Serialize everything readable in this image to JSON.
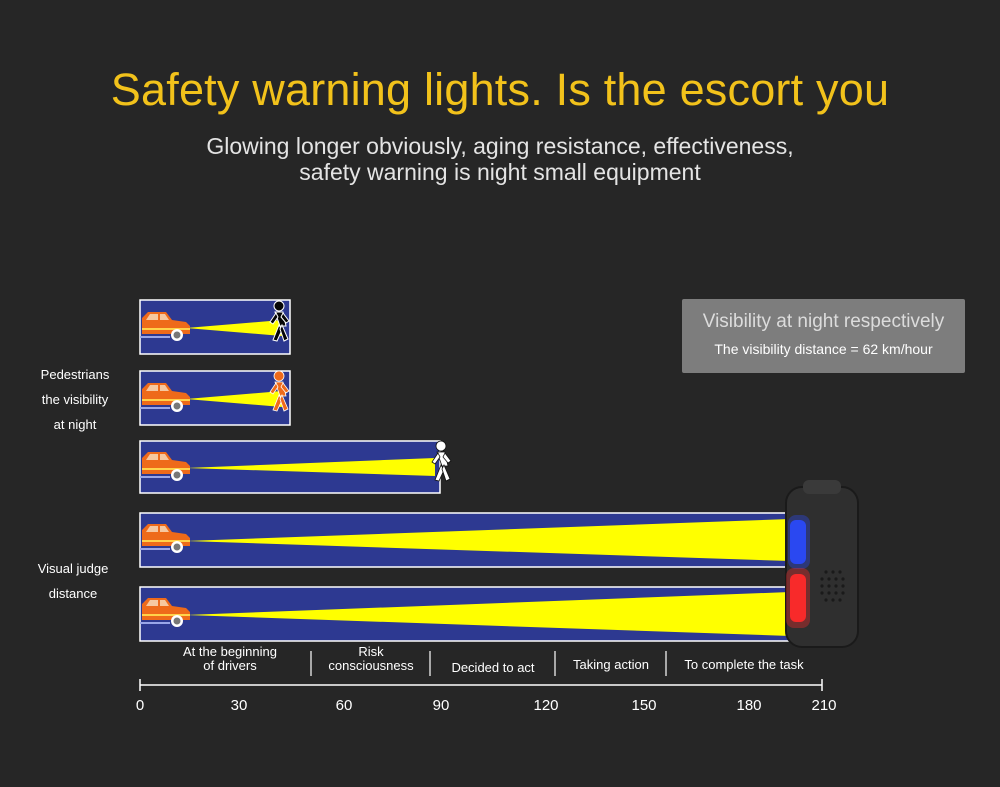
{
  "header": {
    "title": "Safety warning lights. Is the escort you",
    "subtitle_line1": "Glowing longer obviously, aging resistance, effectiveness,",
    "subtitle_line2": "safety warning is night small equipment"
  },
  "side_labels": {
    "pedestrians": [
      "Pedestrians",
      "the visibility",
      "at night"
    ],
    "visual_judge": [
      "Visual judge",
      "distance"
    ]
  },
  "info_box": {
    "title": "Visibility at night respectively",
    "detail": "The visibility distance = 62 km/hour"
  },
  "rows": [
    {
      "pedestrian": "dark clothing",
      "beam_end": 44
    },
    {
      "pedestrian": "orange clothing",
      "beam_end": 44
    },
    {
      "pedestrian": "white clothing",
      "beam_end": 90
    },
    {
      "pedestrian": "warning light",
      "beam_end": 198
    },
    {
      "pedestrian": "warning light",
      "beam_end": 198
    }
  ],
  "stages": [
    {
      "line1": "At the beginning",
      "line2": "of drivers"
    },
    {
      "line1": "Risk",
      "line2": "consciousness"
    },
    {
      "line1": "Decided to act",
      "line2": ""
    },
    {
      "line1": "Taking action",
      "line2": ""
    },
    {
      "line1": "To complete the task",
      "line2": ""
    }
  ],
  "axis_ticks": [
    "0",
    "30",
    "60",
    "90",
    "120",
    "150",
    "180",
    "210"
  ],
  "colors": {
    "title": "#f2c21b",
    "panel": "#2d3991",
    "beam": "#ffff00",
    "car": "#ee6a1a",
    "light_red": "#ff2a2a",
    "light_blue": "#2a4bff"
  }
}
